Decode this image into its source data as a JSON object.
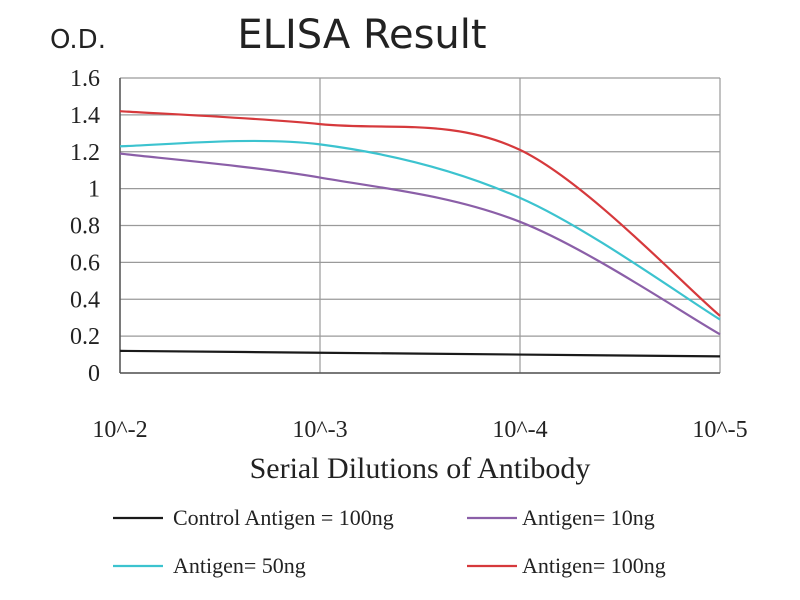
{
  "chart_data": {
    "type": "line",
    "title": "ELISA Result",
    "ylabel": "O.D.",
    "xlabel": "Serial Dilutions of Antibody",
    "categories": [
      "10^-2",
      "10^-3",
      "10^-4",
      "10^-5"
    ],
    "ylim": [
      0,
      1.6
    ],
    "yticks": [
      "0",
      "0.2",
      "0.4",
      "0.6",
      "0.8",
      "1",
      "1.2",
      "1.4",
      "1.6"
    ],
    "grid": true,
    "legend_position": "bottom",
    "series": [
      {
        "name": "Control Antigen = 100ng",
        "color": "#1a1a1a",
        "values": [
          0.12,
          0.11,
          0.1,
          0.09
        ]
      },
      {
        "name": "Antigen= 10ng",
        "color": "#8b5fa8",
        "values": [
          1.19,
          1.06,
          0.82,
          0.21
        ]
      },
      {
        "name": "Antigen= 50ng",
        "color": "#3cc3cf",
        "values": [
          1.23,
          1.24,
          0.95,
          0.29
        ]
      },
      {
        "name": "Antigen= 100ng",
        "color": "#d6393c",
        "values": [
          1.42,
          1.35,
          1.21,
          0.31
        ]
      }
    ]
  }
}
